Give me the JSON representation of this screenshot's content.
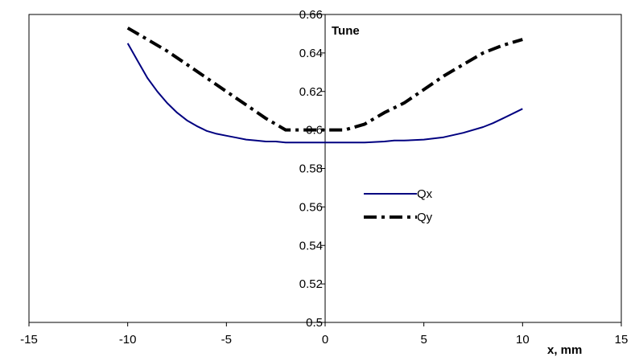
{
  "chart_data": {
    "type": "line",
    "title": "",
    "ylabel": "Tune",
    "xlabel": "x, mm",
    "xlim": [
      -15,
      15
    ],
    "ylim": [
      0.5,
      0.66
    ],
    "xticks": [
      -15,
      -10,
      -5,
      0,
      5,
      10,
      15
    ],
    "yticks": [
      0.5,
      0.52,
      0.54,
      0.56,
      0.58,
      0.6,
      0.62,
      0.64,
      0.66
    ],
    "xtick_labels": [
      "-15",
      "-10",
      "-5",
      "0",
      "5",
      "10",
      "15"
    ],
    "ytick_labels": [
      "0.5",
      "0.52",
      "0.54",
      "0.56",
      "0.58",
      "0.6",
      "0.62",
      "0.64",
      "0.66"
    ],
    "grid": false,
    "axes_cross_at_origin": true,
    "legend_placement": "center-right",
    "series": [
      {
        "name": "Qx",
        "color": "#000080",
        "style": "solid",
        "x": [
          -10,
          -9.5,
          -9,
          -8.5,
          -8,
          -7.5,
          -7,
          -6.5,
          -6,
          -5.5,
          -5,
          -4.5,
          -4,
          -3.5,
          -3,
          -2.5,
          -2,
          -1.5,
          -1,
          0,
          1,
          2,
          3,
          3.5,
          4,
          5,
          6,
          7,
          8,
          8.5,
          9,
          9.5,
          10
        ],
        "y": [
          0.645,
          0.636,
          0.627,
          0.62,
          0.614,
          0.609,
          0.605,
          0.602,
          0.5995,
          0.598,
          0.597,
          0.596,
          0.595,
          0.5945,
          0.594,
          0.594,
          0.5935,
          0.5935,
          0.5935,
          0.5935,
          0.5935,
          0.5935,
          0.594,
          0.5945,
          0.5945,
          0.595,
          0.5962,
          0.5985,
          0.6015,
          0.6035,
          0.606,
          0.6085,
          0.611
        ]
      },
      {
        "name": "Qy",
        "color": "#000000",
        "style": "dash-dot",
        "x": [
          -10,
          -9,
          -8,
          -7,
          -6,
          -5,
          -4,
          -3,
          -2,
          -1,
          0,
          1,
          2,
          3,
          4,
          5,
          6,
          7,
          8,
          9,
          10
        ],
        "y": [
          0.653,
          0.647,
          0.641,
          0.634,
          0.627,
          0.62,
          0.613,
          0.606,
          0.6,
          0.6,
          0.6,
          0.6,
          0.603,
          0.609,
          0.614,
          0.621,
          0.628,
          0.634,
          0.64,
          0.644,
          0.647
        ]
      }
    ]
  }
}
